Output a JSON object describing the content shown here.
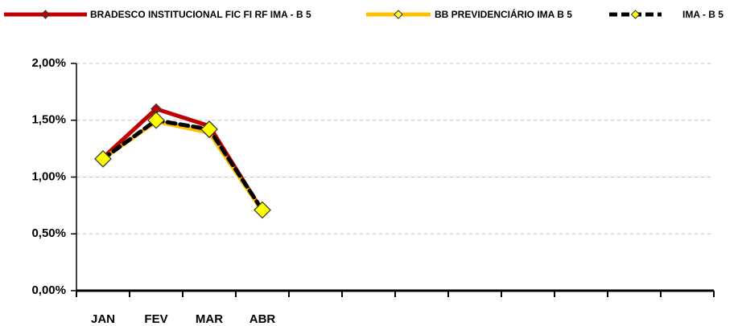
{
  "chart_data": {
    "type": "line",
    "categories": [
      "JAN",
      "FEV",
      "MAR",
      "ABR",
      null,
      null,
      null,
      null,
      null,
      null,
      null,
      null
    ],
    "series": [
      {
        "name": "BRADESCO INSTITUCIONAL FIC FI RF IMA - B 5",
        "color": "#c00000",
        "marker_color": "#c00000",
        "values": [
          1.17,
          1.6,
          1.45,
          0.7,
          null,
          null,
          null,
          null,
          null,
          null,
          null,
          null
        ]
      },
      {
        "name": "BB PREVIDENCIÁRIO IMA B 5",
        "color": "#ffc000",
        "marker_color": "#ffff33",
        "values": [
          1.16,
          1.49,
          1.39,
          0.7,
          null,
          null,
          null,
          null,
          null,
          null,
          null,
          null
        ]
      },
      {
        "name": "IMA - B 5",
        "color": "#000000",
        "marker_color": "#ffff00",
        "dashed": true,
        "values": [
          1.16,
          1.5,
          1.42,
          0.71,
          null,
          null,
          null,
          null,
          null,
          null,
          null,
          null
        ]
      }
    ],
    "ylim": [
      0,
      2
    ],
    "yticks": [
      {
        "value": 0,
        "label": "0,00%"
      },
      {
        "value": 0.5,
        "label": "0,50%"
      },
      {
        "value": 1,
        "label": "1,00%"
      },
      {
        "value": 1.5,
        "label": "1,50%"
      },
      {
        "value": 2,
        "label": "2,00%"
      }
    ],
    "grid": true,
    "legend": "top"
  }
}
